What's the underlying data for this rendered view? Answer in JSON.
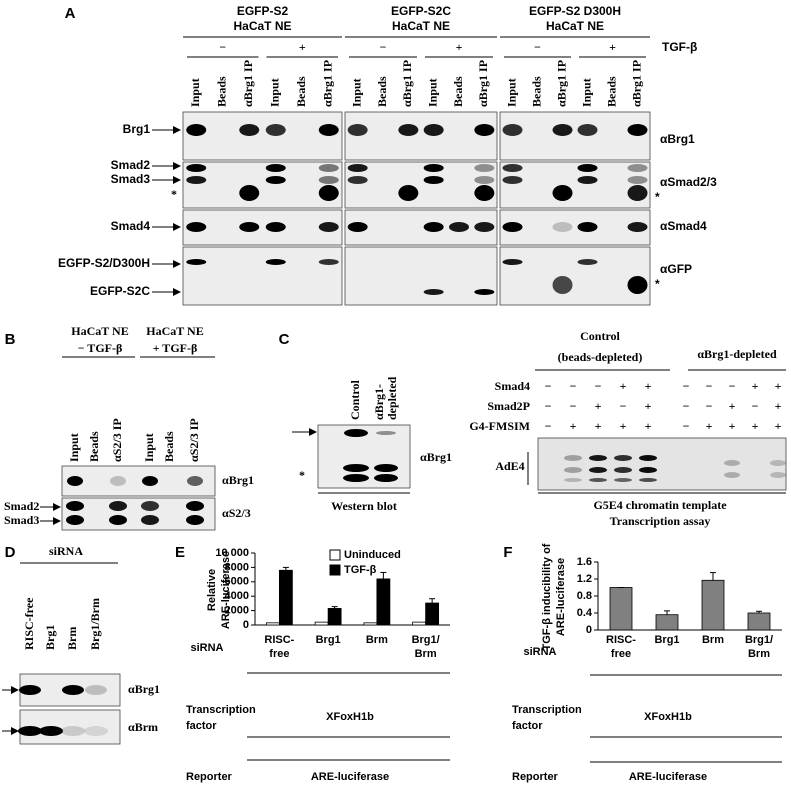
{
  "panel_a": {
    "label": "A",
    "groups": [
      {
        "title": [
          "EGFP-S2",
          "HaCaT NE"
        ]
      },
      {
        "title": [
          "EGFP-S2C",
          "HaCaT NE"
        ]
      },
      {
        "title": [
          "EGFP-S2 D300H",
          "HaCaT NE"
        ]
      }
    ],
    "conditions": [
      "−",
      "+"
    ],
    "treatment": "TGF-β",
    "lanes": [
      "Input",
      "Beads",
      "αBrg1 IP"
    ],
    "left_labels": [
      "Brg1",
      "Smad2",
      "Smad3",
      "*",
      "Smad4",
      "EGFP-S2/D300H",
      "EGFP-S2C"
    ],
    "right_labels": [
      "αBrg1",
      "αSmad2/3",
      "*",
      "αSmad4",
      "αGFP",
      "*"
    ]
  },
  "panel_b": {
    "label": "B",
    "groups": [
      [
        "HaCaT NE",
        "− TGF-β"
      ],
      [
        "HaCaT NE",
        "+ TGF-β"
      ]
    ],
    "lanes": [
      "Input",
      "Beads",
      "αS2/3 IP"
    ],
    "left_labels": [
      "Smad2",
      "Smad3"
    ],
    "right_labels": [
      "αBrg1",
      "αS2/3"
    ]
  },
  "panel_c": {
    "label": "C",
    "western": {
      "lanes": [
        [
          "Control"
        ],
        [
          "αBrg1-",
          "depleted"
        ]
      ],
      "right_label": "αBrg1",
      "star": "*",
      "caption": "Western blot"
    },
    "transcription": {
      "groups": [
        [
          "Control",
          "(beads-depleted)"
        ],
        [
          "αBrg1-depleted"
        ]
      ],
      "rows": [
        {
          "name": "Smad4",
          "signs": [
            "−",
            "−",
            "−",
            "+",
            "+",
            "−",
            "−",
            "−",
            "+",
            "+"
          ]
        },
        {
          "name": "Smad2P",
          "signs": [
            "−",
            "−",
            "+",
            "−",
            "+",
            "−",
            "−",
            "+",
            "−",
            "+"
          ]
        },
        {
          "name": "G4-FMSIM",
          "signs": [
            "−",
            "+",
            "+",
            "+",
            "+",
            "−",
            "+",
            "+",
            "+",
            "+"
          ]
        }
      ],
      "band_label": "AdE4",
      "caption": [
        "G5E4 chromatin template",
        "Transcription assay"
      ]
    }
  },
  "panel_d": {
    "label": "D",
    "title": "siRNA",
    "lanes": [
      "RISC-free",
      "Brg1",
      "Brm",
      "Brg1/Brm"
    ],
    "right_labels": [
      "αBrg1",
      "αBrm"
    ]
  },
  "chart_data": [
    {
      "type": "bar",
      "label": "E",
      "ylabel": [
        "Relative",
        "ARE-luciferase"
      ],
      "categories": [
        [
          "RISC-",
          "free"
        ],
        [
          "Brg1"
        ],
        [
          "Brm"
        ],
        [
          "Brg1/",
          "Brm"
        ]
      ],
      "series": [
        {
          "name": "Uninduced",
          "color": "#ffffff",
          "values": [
            300,
            400,
            300,
            400
          ]
        },
        {
          "name": "TGF-β",
          "color": "#000000",
          "values": [
            7600,
            2300,
            6400,
            3050
          ],
          "errors": [
            400,
            250,
            900,
            600
          ]
        }
      ],
      "ylim": [
        0,
        10000
      ],
      "yticks": [
        0,
        2000,
        4000,
        6000,
        8000,
        {
          "value": 10000,
          "label": "10 000"
        }
      ],
      "legend": "upper left",
      "category_label": "siRNA",
      "rows": [
        {
          "name": [
            "Transcription",
            "factor"
          ],
          "value": "XFoxH1b"
        },
        {
          "name": [
            "Reporter"
          ],
          "value": "ARE-luciferase"
        }
      ]
    },
    {
      "type": "bar",
      "label": "F",
      "ylabel": [
        "TGF-β inducibility of",
        "ARE-luciferase"
      ],
      "categories": [
        [
          "RISC-",
          "free"
        ],
        [
          "Brg1"
        ],
        [
          "Brm"
        ],
        [
          "Brg1/",
          "Brm"
        ]
      ],
      "series": [
        {
          "color": "#808080",
          "values": [
            1,
            0.36,
            1.17,
            0.4
          ],
          "errors": [
            0,
            0.09,
            0.18,
            0.04
          ]
        }
      ],
      "ylim": [
        0,
        1.6
      ],
      "yticks": [
        0,
        0.4,
        0.8,
        1.2,
        1.6
      ],
      "category_label": "siRNA",
      "rows": [
        {
          "name": [
            "Transcription",
            "factor"
          ],
          "value": "XFoxH1b"
        },
        {
          "name": [
            "Reporter"
          ],
          "value": "ARE-luciferase"
        }
      ]
    }
  ]
}
